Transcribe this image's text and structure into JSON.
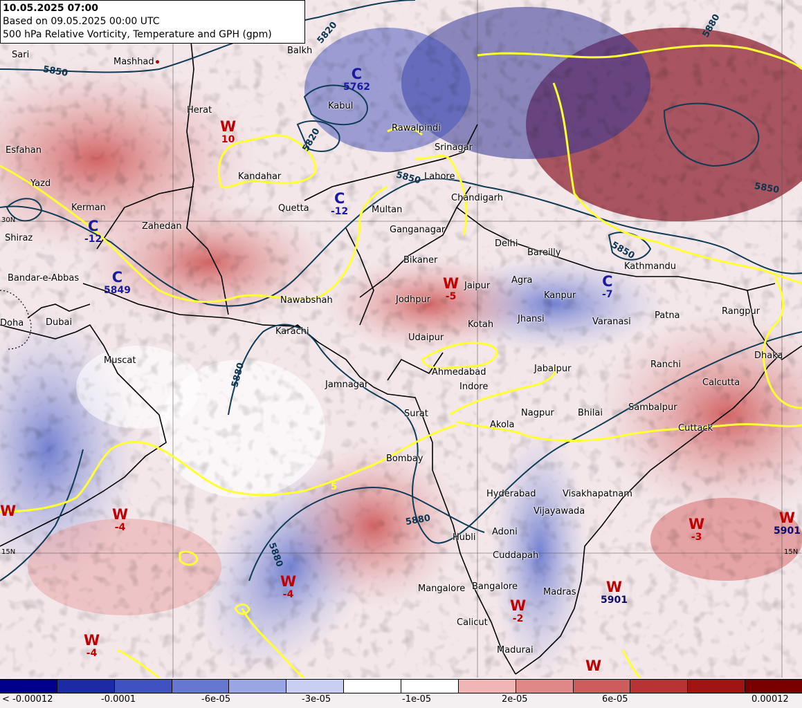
{
  "header": {
    "valid_time": "10.05.2025 07:00",
    "base_time": "Based on 09.05.2025 00:00 UTC",
    "description": "500 hPa Relative Vorticity, Temperature and GPH (gpm)"
  },
  "cities": [
    {
      "name": "Sari"
    },
    {
      "name": "Mashhad"
    },
    {
      "name": "Herat"
    },
    {
      "name": "Balkh"
    },
    {
      "name": "Kabul"
    },
    {
      "name": "Rawalpindi"
    },
    {
      "name": "Srinagar"
    },
    {
      "name": "Esfahan"
    },
    {
      "name": "Yazd"
    },
    {
      "name": "Kandahar"
    },
    {
      "name": "Lahore"
    },
    {
      "name": "Chandigarh"
    },
    {
      "name": "Kerman"
    },
    {
      "name": "Quetta"
    },
    {
      "name": "Multan"
    },
    {
      "name": "Zahedan"
    },
    {
      "name": "Shiraz"
    },
    {
      "name": "Ganganagar"
    },
    {
      "name": "Delhi"
    },
    {
      "name": "Bareilly"
    },
    {
      "name": "Bikaner"
    },
    {
      "name": "Bandar-e-Abbas"
    },
    {
      "name": "Jaipur"
    },
    {
      "name": "Agra"
    },
    {
      "name": "Kathmandu"
    },
    {
      "name": "Nawabshah"
    },
    {
      "name": "Jodhpur"
    },
    {
      "name": "Kanpur"
    },
    {
      "name": "Patna"
    },
    {
      "name": "Rangpur"
    },
    {
      "name": "Doha"
    },
    {
      "name": "Dubai"
    },
    {
      "name": "Karachi"
    },
    {
      "name": "Kotah"
    },
    {
      "name": "Jhansi"
    },
    {
      "name": "Varanasi"
    },
    {
      "name": "Udaipur"
    },
    {
      "name": "Dhaka"
    },
    {
      "name": "Muscat"
    },
    {
      "name": "Ranchi"
    },
    {
      "name": "Jabalpur"
    },
    {
      "name": "Ahmedabad"
    },
    {
      "name": "Calcutta"
    },
    {
      "name": "Jamnagar"
    },
    {
      "name": "Indore"
    },
    {
      "name": "Sambalpur"
    },
    {
      "name": "Surat"
    },
    {
      "name": "Nagpur"
    },
    {
      "name": "Bhilai"
    },
    {
      "name": "Akola"
    },
    {
      "name": "Cuttack"
    },
    {
      "name": "Bombay"
    },
    {
      "name": "Hyderabad"
    },
    {
      "name": "Visakhapatnam"
    },
    {
      "name": "Vijayawada"
    },
    {
      "name": "Hubli"
    },
    {
      "name": "Adoni"
    },
    {
      "name": "Cuddapah"
    },
    {
      "name": "Mangalore"
    },
    {
      "name": "Bangalore"
    },
    {
      "name": "Madras"
    },
    {
      "name": "Calicut"
    },
    {
      "name": "Madurai"
    }
  ],
  "systems": [
    {
      "letter": "W",
      "value": "10"
    },
    {
      "letter": "C",
      "value": "5762"
    },
    {
      "letter": "C",
      "value": "-12"
    },
    {
      "letter": "C",
      "value": "-12"
    },
    {
      "letter": "C",
      "value": "5849"
    },
    {
      "letter": "W",
      "value": "-5"
    },
    {
      "letter": "C",
      "value": "-7"
    },
    {
      "letter": "W",
      "value": "-4"
    },
    {
      "letter": "W",
      "value": "-4"
    },
    {
      "letter": "W",
      "value": "-4"
    },
    {
      "letter": "W",
      "value": "-2"
    },
    {
      "letter": "W",
      "value": "5901"
    },
    {
      "letter": "W",
      "value": "-3"
    },
    {
      "letter": "W",
      "value": "5901"
    },
    {
      "letter": "W",
      "value": ""
    },
    {
      "letter": "W",
      "value": ""
    }
  ],
  "contour_labels": [
    "5850",
    "5820",
    "5850",
    "5880",
    "5880",
    "5850",
    "5880",
    "5850",
    "5880",
    "5820",
    "5"
  ],
  "lat_labels": [
    "30N",
    "15N",
    "15N"
  ],
  "colorbar": {
    "colors": [
      "#00008c",
      "#1c2aa6",
      "#3f52bf",
      "#6677d2",
      "#9aa6e4",
      "#c9cff2",
      "#ffffff",
      "#ffffff",
      "#f1b5b5",
      "#e08888",
      "#cd5d5d",
      "#b83434",
      "#a01414",
      "#7a0000"
    ],
    "labels": [
      "< -0.00012",
      "-0.0001",
      "-6e-05",
      "-3e-05",
      "-1e-05",
      "2e-05",
      "6e-05",
      "0.00012"
    ]
  }
}
